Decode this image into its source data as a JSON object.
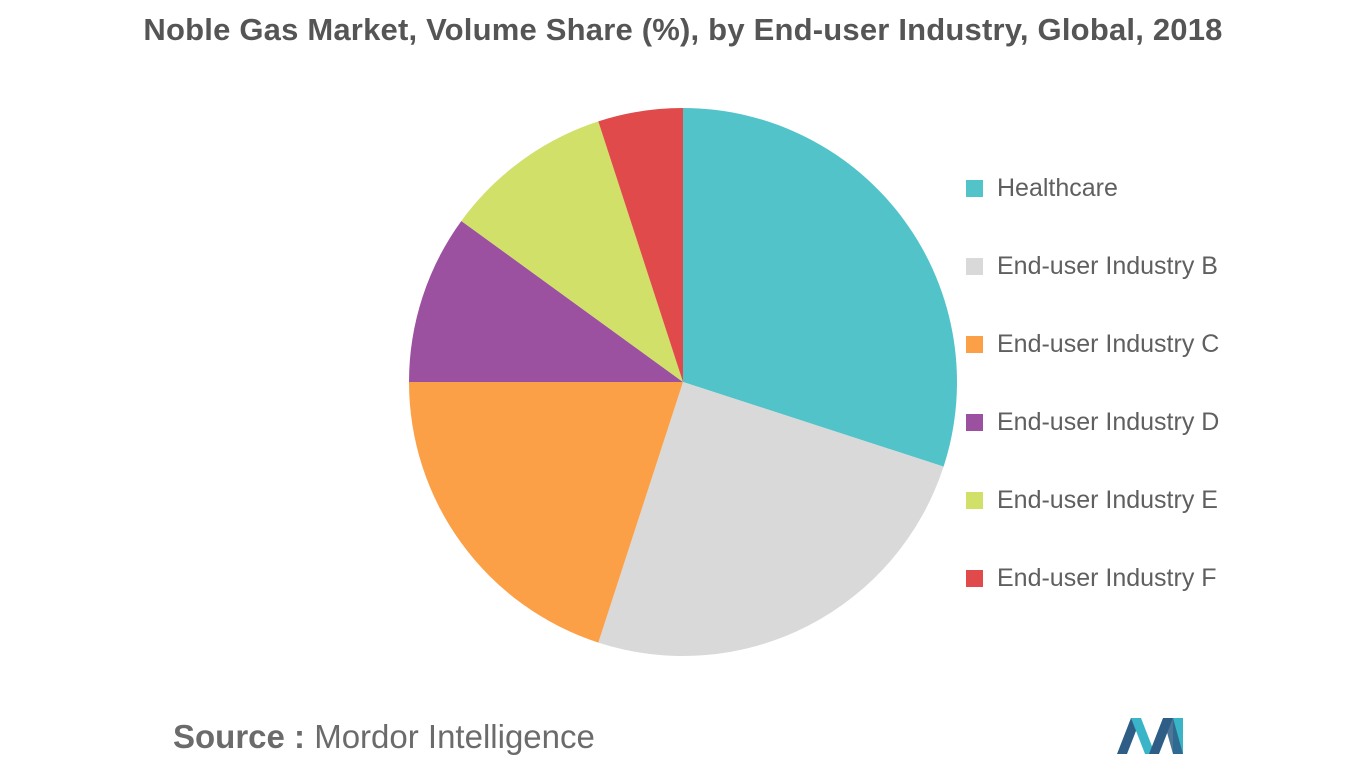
{
  "chart_data": {
    "type": "pie",
    "title": "Noble Gas Market, Volume Share (%), by End-user Industry, Global, 2018",
    "slices": [
      {
        "label": "Healthcare",
        "value": 30,
        "color": "#52C4C9"
      },
      {
        "label": "End-user Industry B",
        "value": 25,
        "color": "#D9D9D9"
      },
      {
        "label": "End-user Industry C",
        "value": 20,
        "color": "#FCA047"
      },
      {
        "label": "End-user Industry D",
        "value": 10,
        "color": "#9B519F"
      },
      {
        "label": "End-user Industry E",
        "value": 10,
        "color": "#D0E069"
      },
      {
        "label": "End-user Industry F",
        "value": 5,
        "color": "#E04A4A"
      }
    ],
    "legend_position": "right"
  },
  "source": {
    "label": "Source :",
    "text": "Mordor Intelligence"
  },
  "logo": {
    "icon": "mordor-intelligence-logo-icon",
    "colors": [
      "#2E5E86",
      "#3AB5C8"
    ]
  }
}
